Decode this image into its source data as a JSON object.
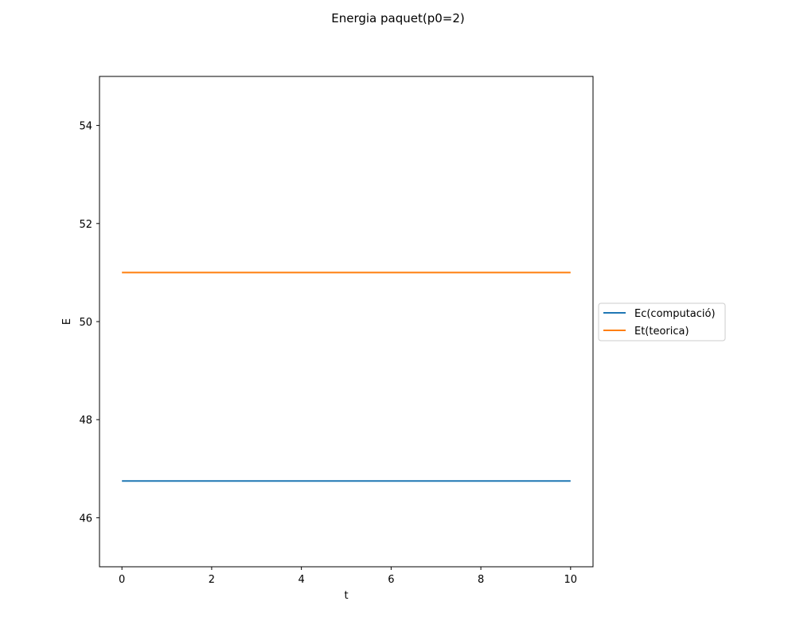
{
  "chart_data": {
    "type": "line",
    "title": "Energia paquet(p0=2)",
    "xlabel": "t",
    "ylabel": "E",
    "xlim": [
      -0.5,
      10.5
    ],
    "ylim": [
      45,
      55
    ],
    "xticks": [
      0,
      2,
      4,
      6,
      8,
      10
    ],
    "yticks": [
      46,
      48,
      50,
      52,
      54
    ],
    "grid": false,
    "legend_position": "outside-right",
    "x": [
      0,
      10
    ],
    "series": [
      {
        "name": "Ec(computació)",
        "color": "#1f77b4",
        "values": [
          46.75,
          46.75
        ]
      },
      {
        "name": "Et(teorica)",
        "color": "#ff7f0e",
        "values": [
          51.0,
          51.0
        ]
      }
    ]
  }
}
